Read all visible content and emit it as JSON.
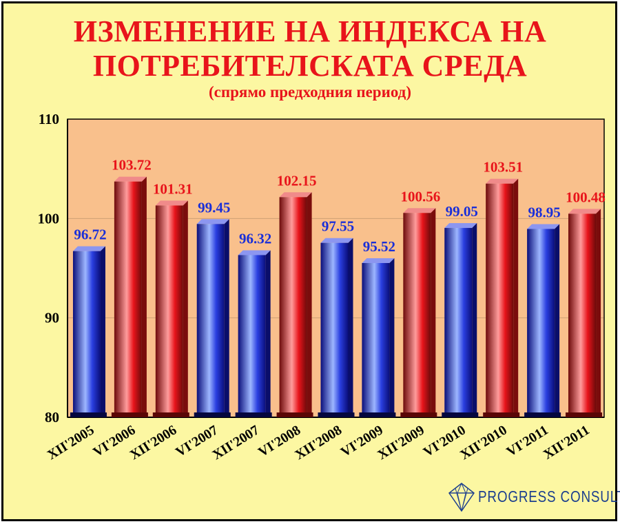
{
  "chart_data": {
    "type": "bar",
    "title": "ИЗМЕНЕНИЕ НА ИНДЕКСА НА",
    "title_line2": "ПОТРЕБИТЕЛСКАТА СРЕДА",
    "subtitle": "(спрямо предходния период)",
    "xlabel": "",
    "ylabel": "",
    "ylim": [
      80,
      110
    ],
    "yticks": [
      80,
      90,
      100,
      110
    ],
    "grid": true,
    "categories": [
      "XII'2005",
      "VI'2006",
      "XII'2006",
      "VI'2007",
      "XII'2007",
      "VI'2008",
      "XII'2008",
      "VI'2009",
      "XII'2009",
      "VI'2010",
      "XII'2010",
      "VI'2011",
      "XII'2011"
    ],
    "values": [
      96.72,
      103.72,
      101.31,
      99.45,
      96.32,
      102.15,
      97.55,
      95.52,
      100.56,
      99.05,
      103.51,
      98.95,
      100.48
    ],
    "labels": [
      "96.72",
      "103.72",
      "101.31",
      "99.45",
      "96.32",
      "102.15",
      "97.55",
      "95.52",
      "100.56",
      "99.05",
      "103.51",
      "98.95",
      "100.48"
    ],
    "colors": {
      "blue_bar": "#2a3fe0",
      "red_bar": "#e8141b",
      "blue_label": "#1a2fd8",
      "red_label": "#e8141b",
      "plot_background": "#f9c08c",
      "page_background": "#fcf7a2"
    }
  },
  "logo": {
    "text": "PROGRESS CONSULT",
    "icon": "diamond-logo-icon",
    "color": "#1c3f8e"
  }
}
